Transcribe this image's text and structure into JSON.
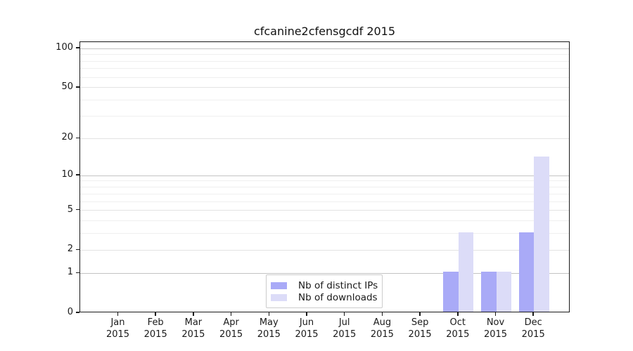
{
  "chart_data": {
    "type": "bar",
    "title": "cfcanine2cfensgcdf 2015",
    "year_label": "2015",
    "categories": [
      "Jan",
      "Feb",
      "Mar",
      "Apr",
      "May",
      "Jun",
      "Jul",
      "Aug",
      "Sep",
      "Oct",
      "Nov",
      "Dec"
    ],
    "series": [
      {
        "name": "Nb of distinct IPs",
        "color": "#a9aaf7",
        "values": [
          0,
          0,
          0,
          0,
          0,
          0,
          0,
          0,
          0,
          1,
          1,
          3
        ]
      },
      {
        "name": "Nb of downloads",
        "color": "#dcdcf8",
        "values": [
          0,
          0,
          0,
          0,
          0,
          0,
          0,
          0,
          0,
          3,
          1,
          14
        ]
      }
    ],
    "yscale": "log1p",
    "ylim": [
      0,
      112
    ],
    "yticks": [
      0,
      1,
      2,
      5,
      10,
      20,
      50,
      100
    ],
    "yticks_minor": [
      3,
      4,
      6,
      7,
      8,
      9,
      30,
      40,
      60,
      70,
      80,
      90
    ],
    "grid": "horizontal",
    "legend_position": "bottom-center",
    "colors": {
      "grid_major": "#c3c3c3",
      "grid_mid": "#e3e3e3",
      "grid_minor": "#efefef",
      "axis": "#1a1a1a",
      "text": "#1a1a1a"
    }
  }
}
